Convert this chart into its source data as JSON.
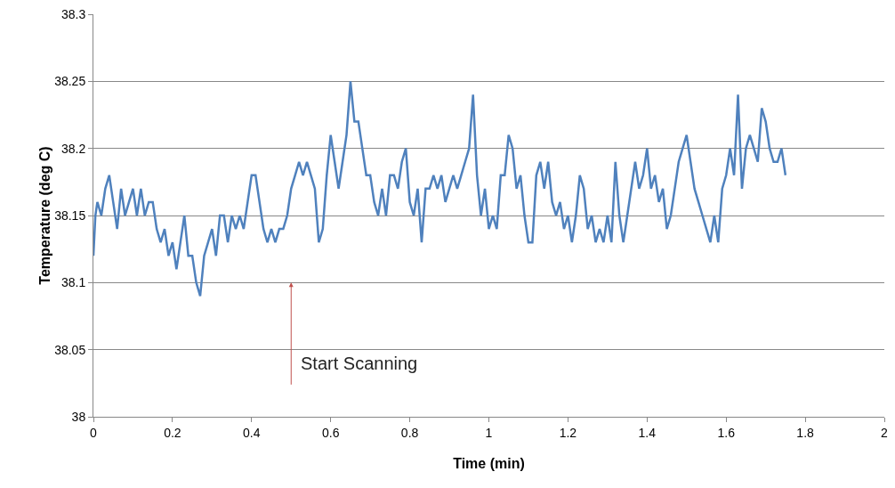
{
  "chart_data": {
    "type": "line",
    "xlabel": "Time (min)",
    "ylabel": "Temperature (deg C)",
    "x": [
      0,
      0.005,
      0.01,
      0.02,
      0.03,
      0.04,
      0.05,
      0.06,
      0.07,
      0.08,
      0.09,
      0.1,
      0.11,
      0.12,
      0.13,
      0.14,
      0.15,
      0.16,
      0.17,
      0.18,
      0.19,
      0.2,
      0.21,
      0.22,
      0.23,
      0.24,
      0.25,
      0.26,
      0.27,
      0.28,
      0.29,
      0.3,
      0.31,
      0.32,
      0.33,
      0.34,
      0.35,
      0.36,
      0.37,
      0.38,
      0.39,
      0.4,
      0.41,
      0.42,
      0.43,
      0.44,
      0.45,
      0.46,
      0.47,
      0.48,
      0.49,
      0.5,
      0.51,
      0.52,
      0.53,
      0.54,
      0.55,
      0.56,
      0.57,
      0.58,
      0.59,
      0.6,
      0.61,
      0.62,
      0.63,
      0.64,
      0.65,
      0.66,
      0.67,
      0.68,
      0.69,
      0.7,
      0.71,
      0.72,
      0.73,
      0.74,
      0.75,
      0.76,
      0.77,
      0.78,
      0.79,
      0.8,
      0.81,
      0.82,
      0.83,
      0.84,
      0.85,
      0.86,
      0.87,
      0.88,
      0.89,
      0.9,
      0.91,
      0.92,
      0.93,
      0.94,
      0.95,
      0.96,
      0.97,
      0.98,
      0.99,
      1.0,
      1.01,
      1.02,
      1.03,
      1.04,
      1.05,
      1.06,
      1.07,
      1.08,
      1.09,
      1.1,
      1.11,
      1.12,
      1.13,
      1.14,
      1.15,
      1.16,
      1.17,
      1.18,
      1.19,
      1.2,
      1.21,
      1.22,
      1.23,
      1.24,
      1.25,
      1.26,
      1.27,
      1.28,
      1.29,
      1.3,
      1.31,
      1.32,
      1.33,
      1.34,
      1.35,
      1.36,
      1.37,
      1.38,
      1.39,
      1.4,
      1.41,
      1.42,
      1.43,
      1.44,
      1.45,
      1.46,
      1.47,
      1.48,
      1.49,
      1.5,
      1.51,
      1.52,
      1.53,
      1.54,
      1.55,
      1.56,
      1.57,
      1.58,
      1.59,
      1.6,
      1.61,
      1.62,
      1.63,
      1.64,
      1.65,
      1.66,
      1.67,
      1.68,
      1.69,
      1.7,
      1.71,
      1.72,
      1.73,
      1.74,
      1.75
    ],
    "series": [
      {
        "color": "#4f81bd",
        "values": [
          38.12,
          38.15,
          38.16,
          38.15,
          38.17,
          38.18,
          38.16,
          38.14,
          38.17,
          38.15,
          38.16,
          38.17,
          38.15,
          38.17,
          38.15,
          38.16,
          38.16,
          38.14,
          38.13,
          38.14,
          38.12,
          38.13,
          38.11,
          38.13,
          38.15,
          38.12,
          38.12,
          38.1,
          38.09,
          38.12,
          38.13,
          38.14,
          38.12,
          38.15,
          38.15,
          38.13,
          38.15,
          38.14,
          38.15,
          38.14,
          38.16,
          38.18,
          38.18,
          38.16,
          38.14,
          38.13,
          38.14,
          38.13,
          38.14,
          38.14,
          38.15,
          38.17,
          38.18,
          38.19,
          38.18,
          38.19,
          38.18,
          38.17,
          38.13,
          38.14,
          38.18,
          38.21,
          38.19,
          38.17,
          38.19,
          38.21,
          38.25,
          38.22,
          38.22,
          38.2,
          38.18,
          38.18,
          38.16,
          38.15,
          38.17,
          38.15,
          38.18,
          38.18,
          38.17,
          38.19,
          38.2,
          38.16,
          38.15,
          38.17,
          38.13,
          38.17,
          38.17,
          38.18,
          38.17,
          38.18,
          38.16,
          38.17,
          38.18,
          38.17,
          38.18,
          38.19,
          38.2,
          38.24,
          38.18,
          38.15,
          38.17,
          38.14,
          38.15,
          38.14,
          38.18,
          38.18,
          38.21,
          38.2,
          38.17,
          38.18,
          38.15,
          38.13,
          38.13,
          38.18,
          38.19,
          38.17,
          38.19,
          38.16,
          38.15,
          38.16,
          38.14,
          38.15,
          38.13,
          38.15,
          38.18,
          38.17,
          38.14,
          38.15,
          38.13,
          38.14,
          38.13,
          38.15,
          38.13,
          38.19,
          38.15,
          38.13,
          38.15,
          38.17,
          38.19,
          38.17,
          38.18,
          38.2,
          38.17,
          38.18,
          38.16,
          38.17,
          38.14,
          38.15,
          38.17,
          38.19,
          38.2,
          38.21,
          38.19,
          38.17,
          38.16,
          38.15,
          38.14,
          38.13,
          38.15,
          38.13,
          38.17,
          38.18,
          38.2,
          38.18,
          38.24,
          38.17,
          38.2,
          38.21,
          38.2,
          38.19,
          38.23,
          38.22,
          38.2,
          38.19,
          38.19,
          38.2,
          38.18
        ]
      }
    ],
    "xlim": [
      0,
      2
    ],
    "xticks": [
      0,
      0.2,
      0.4,
      0.6,
      0.8,
      1,
      1.2,
      1.4,
      1.6,
      1.8,
      2
    ],
    "ylim": [
      38,
      38.3
    ],
    "yticks": [
      38,
      38.05,
      38.1,
      38.15,
      38.2,
      38.25,
      38.3
    ],
    "grid": "y",
    "marker": "none",
    "line_style": "solid",
    "annotations": [
      "Start Scanning"
    ]
  }
}
